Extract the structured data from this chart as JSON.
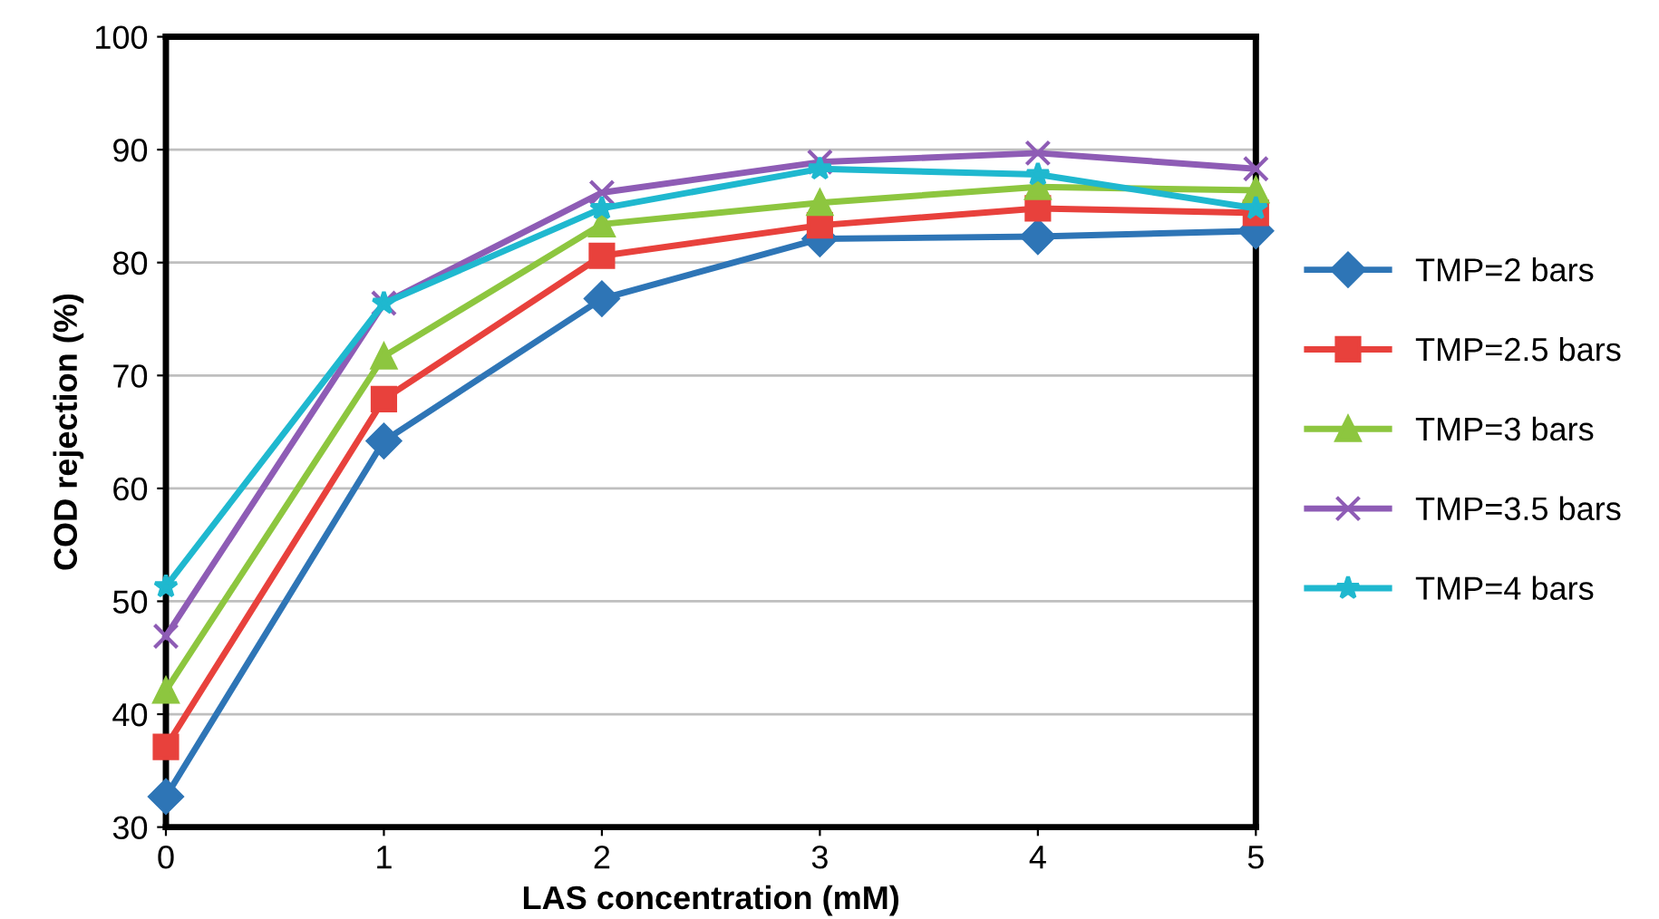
{
  "chart_data": {
    "type": "line",
    "xlabel": "LAS concentration (mM)",
    "ylabel": "COD rejection (%)",
    "x": [
      0,
      1,
      2,
      3,
      4,
      5
    ],
    "xlim": [
      0,
      5
    ],
    "xticks": [
      0,
      1,
      2,
      3,
      4,
      5
    ],
    "ylim": [
      30,
      100
    ],
    "yticks": [
      30,
      40,
      50,
      60,
      70,
      80,
      90,
      100
    ],
    "grid": "y",
    "legend": "right",
    "line_style": "solid",
    "series": [
      {
        "name": "TMP=2 bars",
        "color": "#2e75b6",
        "marker": "diamond",
        "values": [
          32.7,
          64.2,
          76.8,
          82.1,
          82.3,
          82.8
        ]
      },
      {
        "name": "TMP=2.5 bars",
        "color": "#e8413c",
        "marker": "square",
        "values": [
          37.1,
          67.9,
          80.6,
          83.3,
          84.8,
          84.4
        ]
      },
      {
        "name": "TMP=3 bars",
        "color": "#8dc63f",
        "marker": "triangle",
        "values": [
          42.1,
          71.7,
          83.4,
          85.3,
          86.7,
          86.4
        ]
      },
      {
        "name": "TMP=3.5 bars",
        "color": "#8e5cb5",
        "marker": "cross",
        "values": [
          46.9,
          76.4,
          86.2,
          88.9,
          89.7,
          88.3
        ]
      },
      {
        "name": "TMP=4 bars",
        "color": "#1fb8cf",
        "marker": "star",
        "values": [
          51.3,
          76.4,
          84.8,
          88.3,
          87.8,
          84.8
        ]
      }
    ]
  }
}
